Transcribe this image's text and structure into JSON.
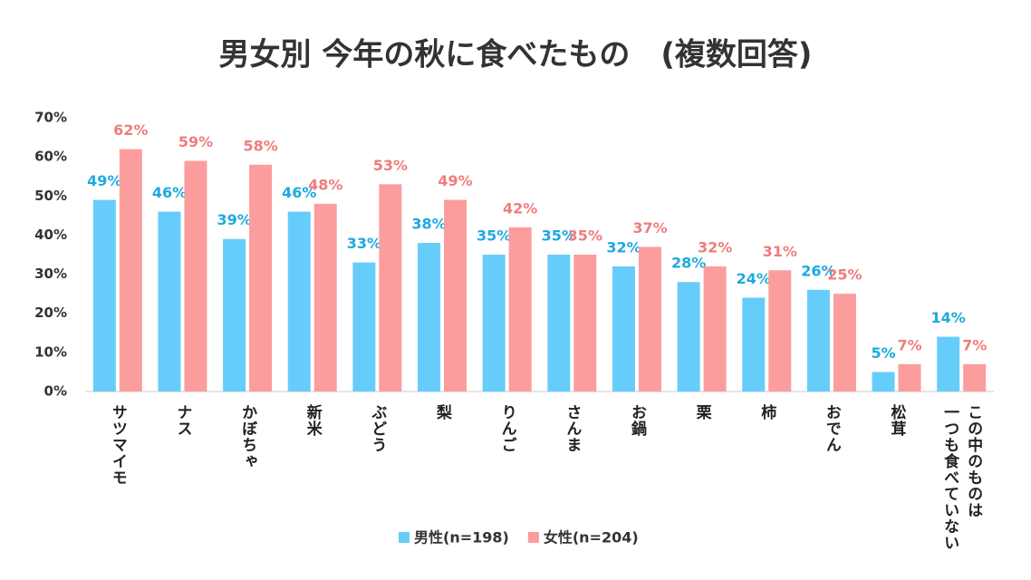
{
  "chart_data": {
    "type": "bar",
    "title": "男女別 今年の秋に食べたもの　(複数回答)",
    "categories": [
      "サツマイモ",
      "ナス",
      "かぼちゃ",
      "新米",
      "ぶどう",
      "梨",
      "りんご",
      "さんま",
      "お鍋",
      "栗",
      "柿",
      "おでん",
      "松茸",
      "この中のものは\n一つも食べていない"
    ],
    "series": [
      {
        "name": "男性(n=198)",
        "color": "#66cdfb",
        "label_color": "#1ea9df",
        "values": [
          49,
          46,
          39,
          46,
          33,
          38,
          35,
          35,
          32,
          28,
          24,
          26,
          5,
          14
        ],
        "value_labels": [
          "49%",
          "46%",
          "39%",
          "46%",
          "33%",
          "38%",
          "35%",
          "35%",
          "32%",
          "28%",
          "24%",
          "26%",
          "5%",
          "14%"
        ]
      },
      {
        "name": "女性(n=204)",
        "color": "#fc9d9d",
        "label_color": "#f07c7c",
        "values": [
          62,
          59,
          58,
          48,
          53,
          49,
          42,
          35,
          37,
          32,
          31,
          25,
          7,
          7
        ],
        "value_labels": [
          "62%",
          "59%",
          "58%",
          "48%",
          "53%",
          "49%",
          "42%",
          "35%",
          "37%",
          "32%",
          "31%",
          "25%",
          "7%",
          "7%"
        ]
      }
    ],
    "ylim": [
      0,
      70
    ],
    "yticks": [
      {
        "value": 0,
        "label": "0%"
      },
      {
        "value": 10,
        "label": "10%"
      },
      {
        "value": 20,
        "label": "20%"
      },
      {
        "value": 30,
        "label": "30%"
      },
      {
        "value": 40,
        "label": "40%"
      },
      {
        "value": 50,
        "label": "50%"
      },
      {
        "value": 60,
        "label": "60%"
      },
      {
        "value": 70,
        "label": "70%"
      }
    ],
    "legend": "bottom"
  }
}
